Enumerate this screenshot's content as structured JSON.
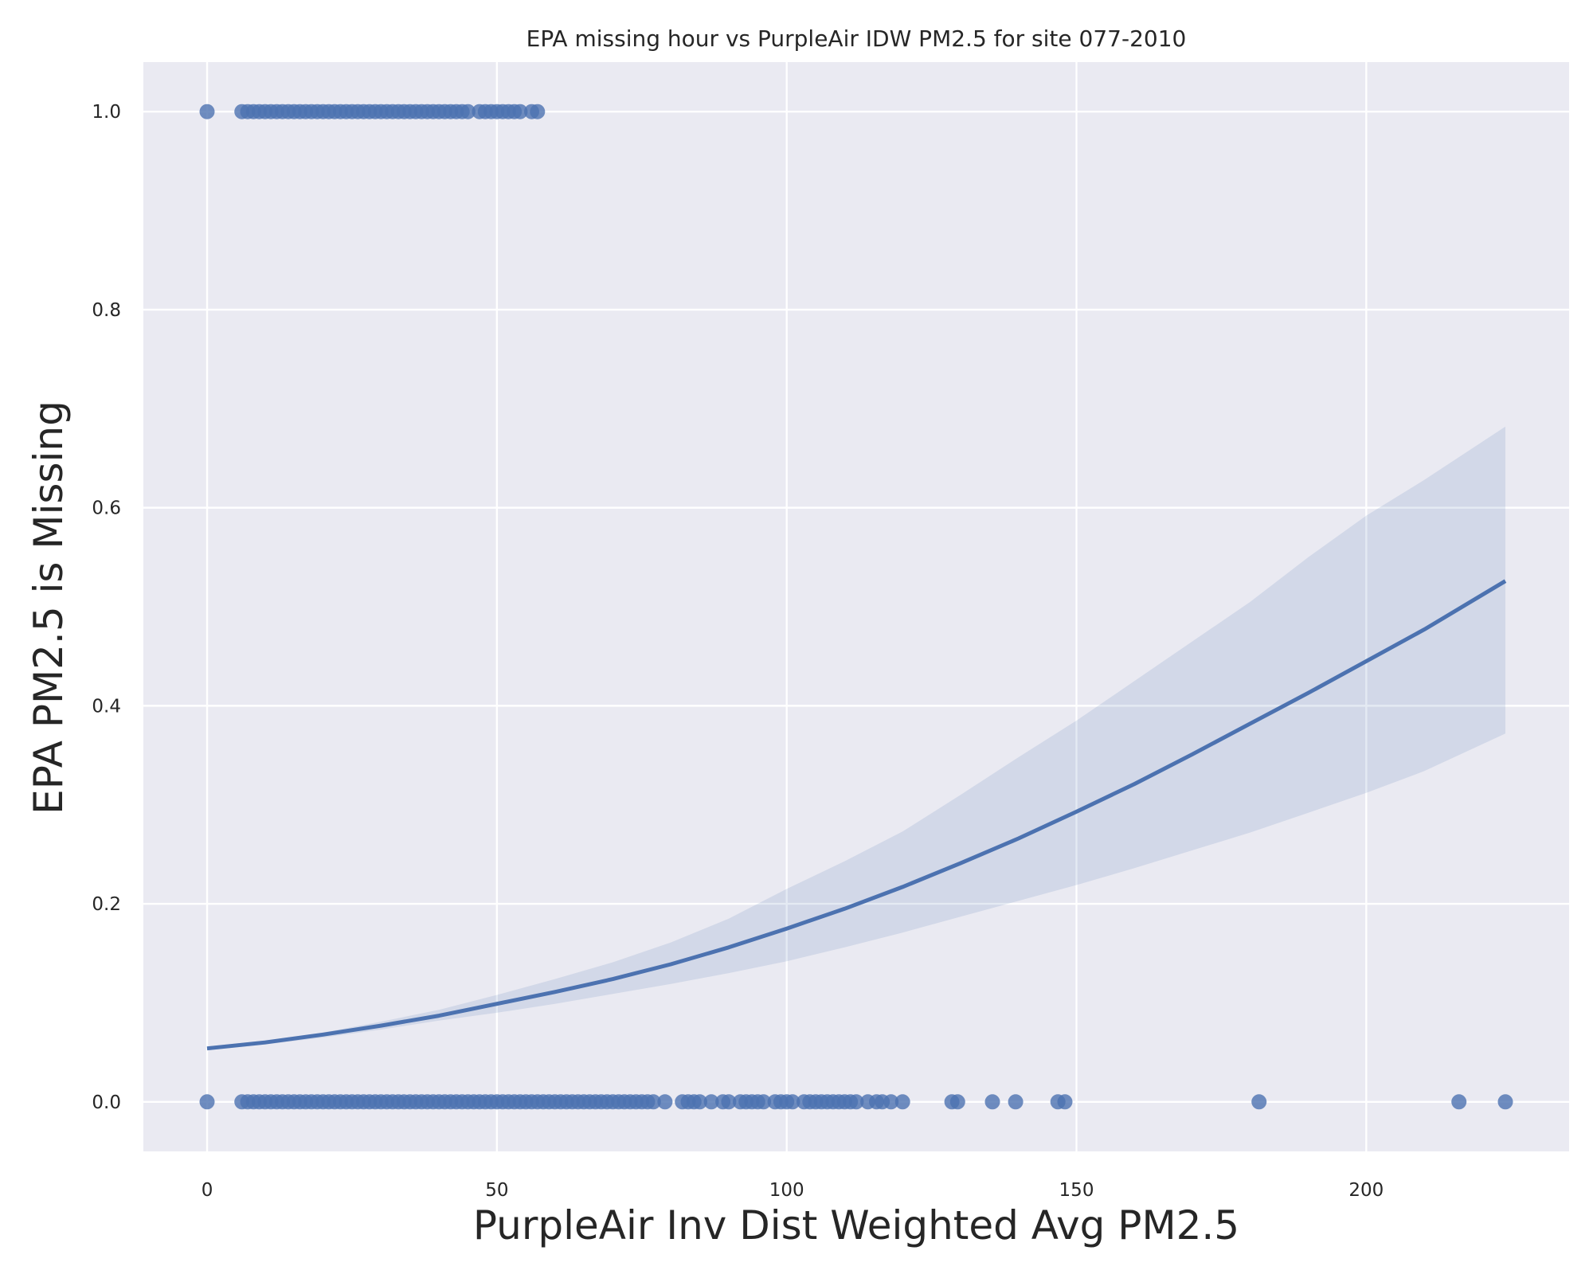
{
  "chart_data": {
    "type": "scatter",
    "title": "EPA missing hour vs PurpleAir IDW PM2.5 for site 077-2010",
    "xlabel": "PurpleAir Inv Dist Weighted Avg PM2.5",
    "ylabel": "EPA PM2.5 is Missing",
    "xlim": [
      -11,
      235
    ],
    "ylim": [
      -0.05,
      1.05
    ],
    "x_ticks": [
      0,
      50,
      100,
      150,
      200
    ],
    "x_tick_labels": [
      "0",
      "50",
      "100",
      "150",
      "200"
    ],
    "y_ticks": [
      0.0,
      0.2,
      0.4,
      0.6,
      0.8,
      1.0
    ],
    "y_tick_labels": [
      "0.0",
      "0.2",
      "0.4",
      "0.6",
      "0.8",
      "1.0"
    ],
    "grid": true,
    "colors": {
      "background": "#eaeaf2",
      "grid": "#ffffff",
      "points": "#4c72b0",
      "line": "#4c72b0",
      "band": "#4c72b0"
    },
    "series": [
      {
        "kind": "points",
        "y": 1.0,
        "x": [
          0,
          6,
          7,
          8,
          9,
          10,
          11,
          12,
          13,
          14,
          15,
          16,
          17,
          18,
          19,
          20,
          21,
          22,
          23,
          24,
          25,
          26,
          27,
          28,
          29,
          30,
          31,
          32,
          33,
          34,
          35,
          36,
          37,
          38,
          39,
          40,
          41,
          42,
          43,
          44,
          45,
          47,
          48,
          49,
          50,
          51,
          52,
          53,
          54,
          56,
          57
        ]
      },
      {
        "kind": "points",
        "y": 0.0,
        "x": [
          0,
          6,
          7,
          8,
          9,
          10,
          11,
          12,
          13,
          14,
          15,
          16,
          17,
          18,
          19,
          20,
          21,
          22,
          23,
          24,
          25,
          26,
          27,
          28,
          29,
          30,
          31,
          32,
          33,
          34,
          35,
          36,
          37,
          38,
          39,
          40,
          41,
          42,
          43,
          44,
          45,
          46,
          47,
          48,
          49,
          50,
          51,
          52,
          53,
          54,
          55,
          56,
          57,
          58,
          59,
          60,
          61,
          62,
          63,
          64,
          65,
          66,
          67,
          68,
          69,
          70,
          71,
          72,
          73,
          74,
          75,
          76,
          77,
          79,
          82,
          83,
          84,
          85,
          87,
          89,
          90,
          92,
          93,
          94,
          95,
          96,
          98,
          99,
          100,
          101,
          103,
          104,
          105,
          106,
          107,
          108,
          109,
          110,
          111,
          112,
          114,
          115.5,
          116.5,
          118,
          120,
          128.5,
          129.5,
          135.5,
          139.5,
          146.8,
          148,
          181.5,
          216,
          224
        ]
      },
      {
        "kind": "logistic-fit",
        "x": [
          0,
          10,
          20,
          30,
          40,
          50,
          60,
          70,
          80,
          90,
          100,
          110,
          120,
          130,
          140,
          150,
          160,
          170,
          180,
          190,
          200,
          210,
          224
        ],
        "y": [
          0.054,
          0.06,
          0.068,
          0.077,
          0.087,
          0.099,
          0.111,
          0.124,
          0.139,
          0.156,
          0.175,
          0.195,
          0.217,
          0.241,
          0.266,
          0.293,
          0.321,
          0.351,
          0.382,
          0.413,
          0.445,
          0.477,
          0.526
        ]
      },
      {
        "kind": "confidence-band",
        "x": [
          0,
          10,
          20,
          30,
          40,
          50,
          60,
          70,
          80,
          90,
          100,
          110,
          120,
          130,
          140,
          150,
          160,
          170,
          180,
          190,
          200,
          210,
          224
        ],
        "lower": [
          0.052,
          0.058,
          0.065,
          0.073,
          0.082,
          0.09,
          0.099,
          0.109,
          0.119,
          0.13,
          0.142,
          0.156,
          0.171,
          0.187,
          0.203,
          0.219,
          0.236,
          0.254,
          0.272,
          0.292,
          0.312,
          0.334,
          0.372
        ],
        "upper": [
          0.056,
          0.062,
          0.07,
          0.081,
          0.093,
          0.108,
          0.124,
          0.141,
          0.161,
          0.185,
          0.215,
          0.243,
          0.273,
          0.31,
          0.348,
          0.385,
          0.425,
          0.465,
          0.505,
          0.55,
          0.592,
          0.628,
          0.682
        ]
      }
    ]
  }
}
